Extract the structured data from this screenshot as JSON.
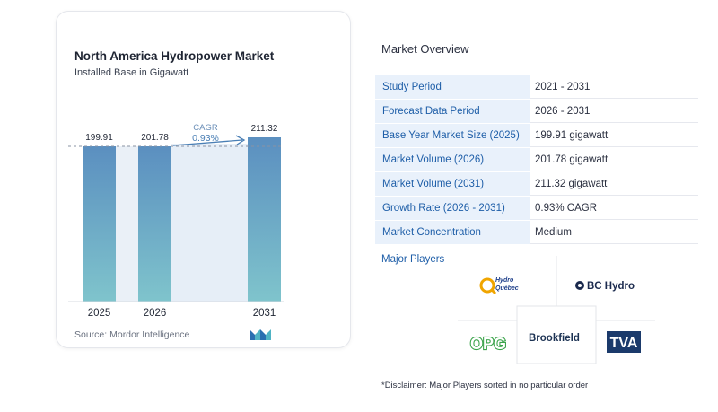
{
  "chart_data": {
    "type": "bar",
    "title": "North America Hydropower Market",
    "subtitle": "Installed Base in Gigawatt",
    "categories": [
      "2025",
      "2026",
      "2031"
    ],
    "values": [
      199.91,
      201.78,
      211.32
    ],
    "value_labels": [
      "199.91",
      "201.78",
      "211.32"
    ],
    "annotation": {
      "label": "CAGR",
      "value": "0.93%"
    },
    "ylim": [
      190,
      215
    ]
  },
  "source": "Source:  Mordor Intelligence",
  "overview": {
    "title": "Market Overview",
    "rows": [
      {
        "label": "Study Period",
        "value": "2021 - 2031"
      },
      {
        "label": "Forecast Data Period",
        "value": "2026 - 2031"
      },
      {
        "label": "Base Year Market Size (2025)",
        "value": "199.91 gigawatt"
      },
      {
        "label": "Market Volume (2026)",
        "value": "201.78 gigawatt"
      },
      {
        "label": "Market Volume (2031)",
        "value": "211.32 gigawatt"
      },
      {
        "label": "Growth Rate (2026 - 2031)",
        "value": "0.93% CAGR"
      },
      {
        "label": "Market Concentration",
        "value": "Medium"
      }
    ]
  },
  "players": {
    "title": "Major Players",
    "hydro_quebec": [
      "Hydro",
      "Québec"
    ],
    "bc_hydro": "BC Hydro",
    "opg": "OPG",
    "brookfield": "Brookfield",
    "tva": "TVA"
  },
  "disclaimer": "*Disclaimer: Major Players sorted in no particular order",
  "colors": {
    "bar_top": "#5b8fc0",
    "bar_bottom": "#7fc4cc",
    "accent": "#1e5ea8",
    "row_bg": "#e9f1fb"
  }
}
